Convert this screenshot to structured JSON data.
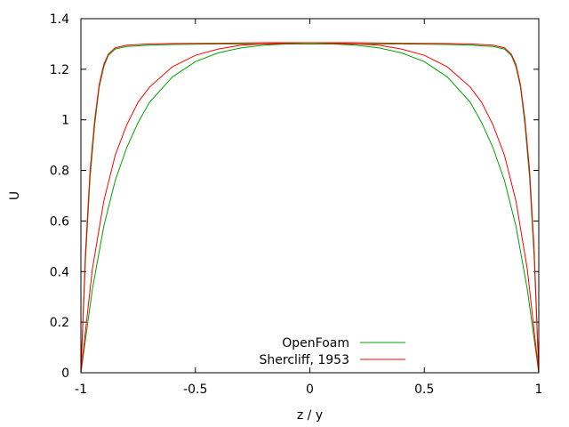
{
  "chart_data": {
    "type": "line",
    "xlabel": "z / y",
    "ylabel": "U",
    "xlim": [
      -1,
      1
    ],
    "ylim": [
      0,
      1.4
    ],
    "grid": false,
    "legend_placement": "bottom-center",
    "x_ticks": [
      {
        "value": -1,
        "label": "-1"
      },
      {
        "value": -0.5,
        "label": "-0.5"
      },
      {
        "value": 0,
        "label": "0"
      },
      {
        "value": 0.5,
        "label": "0.5"
      },
      {
        "value": 1,
        "label": "1"
      }
    ],
    "y_ticks": [
      {
        "value": 0,
        "label": "0"
      },
      {
        "value": 0.2,
        "label": "0.2"
      },
      {
        "value": 0.4,
        "label": "0.4"
      },
      {
        "value": 0.6,
        "label": "0.6"
      },
      {
        "value": 0.8,
        "label": "0.8"
      },
      {
        "value": 1.0,
        "label": "1"
      },
      {
        "value": 1.2,
        "label": "1.2"
      },
      {
        "value": 1.4,
        "label": "1.4"
      }
    ],
    "series": [
      {
        "name": "OpenFoam",
        "color": "#00a000",
        "curves": [
          {
            "x": [
              -1,
              -0.98,
              -0.96,
              -0.94,
              -0.92,
              -0.9,
              -0.88,
              -0.85,
              -0.8,
              -0.7,
              -0.6,
              -0.4,
              -0.2,
              0,
              0.2,
              0.4,
              0.6,
              0.7,
              0.8,
              0.85,
              0.88,
              0.9,
              0.92,
              0.94,
              0.96,
              0.98,
              1
            ],
            "y": [
              0,
              0.45,
              0.77,
              0.98,
              1.13,
              1.21,
              1.255,
              1.28,
              1.29,
              1.295,
              1.298,
              1.3,
              1.3,
              1.3,
              1.3,
              1.3,
              1.298,
              1.295,
              1.29,
              1.28,
              1.255,
              1.21,
              1.13,
              0.98,
              0.77,
              0.45,
              0
            ]
          },
          {
            "x": [
              -1,
              -0.95,
              -0.9,
              -0.85,
              -0.8,
              -0.75,
              -0.7,
              -0.6,
              -0.5,
              -0.4,
              -0.3,
              -0.2,
              -0.1,
              0,
              0.1,
              0.2,
              0.3,
              0.4,
              0.5,
              0.6,
              0.7,
              0.75,
              0.8,
              0.85,
              0.9,
              0.95,
              1
            ],
            "y": [
              0,
              0.33,
              0.58,
              0.76,
              0.89,
              0.99,
              1.07,
              1.17,
              1.23,
              1.265,
              1.285,
              1.295,
              1.3,
              1.3,
              1.3,
              1.295,
              1.285,
              1.265,
              1.23,
              1.17,
              1.07,
              0.99,
              0.89,
              0.76,
              0.58,
              0.33,
              0
            ]
          }
        ]
      },
      {
        "name": "Shercliff, 1953",
        "color": "#ff0000",
        "curves": [
          {
            "x": [
              -1,
              -0.98,
              -0.96,
              -0.94,
              -0.92,
              -0.9,
              -0.88,
              -0.85,
              -0.8,
              -0.7,
              -0.6,
              -0.4,
              -0.2,
              0,
              0.2,
              0.4,
              0.6,
              0.7,
              0.8,
              0.85,
              0.88,
              0.9,
              0.92,
              0.94,
              0.96,
              0.98,
              1
            ],
            "y": [
              0,
              0.48,
              0.8,
              1.0,
              1.14,
              1.22,
              1.26,
              1.285,
              1.295,
              1.3,
              1.302,
              1.303,
              1.305,
              1.305,
              1.305,
              1.303,
              1.302,
              1.3,
              1.295,
              1.285,
              1.26,
              1.22,
              1.14,
              1.0,
              0.8,
              0.48,
              0
            ]
          },
          {
            "x": [
              -1,
              -0.95,
              -0.9,
              -0.85,
              -0.8,
              -0.75,
              -0.7,
              -0.6,
              -0.5,
              -0.4,
              -0.3,
              -0.2,
              -0.1,
              0,
              0.1,
              0.2,
              0.3,
              0.4,
              0.5,
              0.6,
              0.7,
              0.75,
              0.8,
              0.85,
              0.9,
              0.95,
              1
            ],
            "y": [
              0,
              0.41,
              0.68,
              0.86,
              0.98,
              1.07,
              1.13,
              1.21,
              1.255,
              1.28,
              1.295,
              1.3,
              1.303,
              1.305,
              1.303,
              1.3,
              1.295,
              1.28,
              1.255,
              1.21,
              1.13,
              1.07,
              0.98,
              0.86,
              0.68,
              0.41,
              0
            ]
          }
        ]
      }
    ]
  }
}
